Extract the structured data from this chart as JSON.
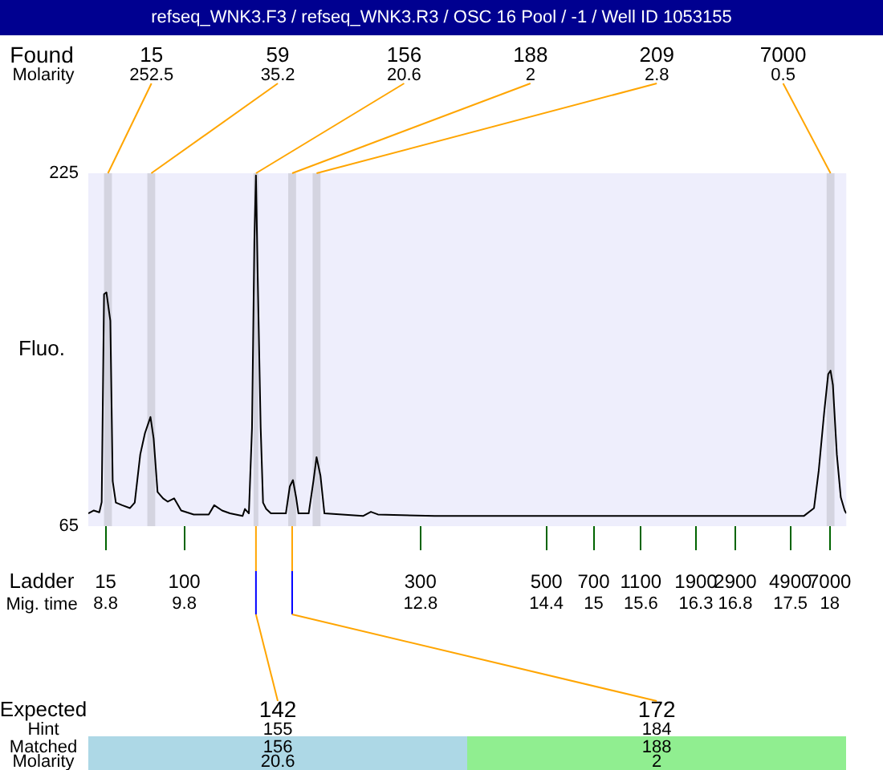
{
  "chart_data": {
    "type": "line",
    "title": "refseq_WNK3.F3 / refseq_WNK3.R3 / OSC 16 Pool / -1 / Well ID 1053155",
    "ylabel": "Fluo.",
    "xlabel": "Mig. time",
    "xlim": [
      8.58,
      18.21
    ],
    "ylim": [
      65,
      225
    ],
    "yticks": [
      65,
      225
    ],
    "xticks": [
      8.8,
      9.8,
      12.8,
      14.4,
      15,
      15.6,
      16.3,
      16.8,
      17.5,
      18
    ],
    "grid": false,
    "legend": false,
    "marker": "none",
    "line_style": "solid",
    "series": [
      {
        "color": "#000000",
        "x": [
          8.58,
          8.65,
          8.72,
          8.75,
          8.78,
          8.81,
          8.86,
          8.89,
          8.93,
          9.01,
          9.11,
          9.17,
          9.24,
          9.3,
          9.37,
          9.41,
          9.46,
          9.53,
          9.59,
          9.67,
          9.76,
          9.92,
          10.11,
          10.18,
          10.28,
          10.38,
          10.54,
          10.57,
          10.62,
          10.66,
          10.69,
          10.71,
          10.73,
          10.77,
          10.8,
          10.84,
          10.9,
          11.09,
          11.14,
          11.18,
          11.22,
          11.25,
          11.38,
          11.44,
          11.48,
          11.53,
          11.58,
          12.07,
          12.17,
          12.26,
          12.98,
          15.32,
          17.67,
          17.8,
          17.86,
          17.93,
          17.98,
          18.01,
          18.04,
          18.09,
          18.14,
          18.19,
          18.21
        ],
        "values": [
          70.8,
          72.1,
          71.3,
          75.9,
          170.2,
          171,
          158.1,
          85.4,
          75.7,
          74.5,
          73.2,
          75.7,
          97.5,
          107.2,
          114.5,
          104.8,
          80.5,
          77.6,
          76.1,
          77.6,
          72.1,
          70.3,
          70.3,
          74.5,
          72.1,
          70.8,
          69.6,
          72.8,
          70.8,
          109.6,
          194.5,
          224,
          182.3,
          109.6,
          75.7,
          72.8,
          70.8,
          70.8,
          83,
          85.9,
          78.1,
          70.8,
          70.8,
          85.4,
          96.3,
          87.8,
          70.8,
          69.6,
          71.5,
          70.3,
          69.6,
          69.6,
          69.6,
          73.2,
          90.2,
          116.9,
          133.9,
          135.5,
          129,
          97.5,
          78.1,
          72.1,
          70.8
        ]
      }
    ],
    "bands": [
      {
        "axis": "x",
        "from": 8.78,
        "to": 8.88,
        "color": "#d4d4e0"
      },
      {
        "axis": "x",
        "from": 9.33,
        "to": 9.43,
        "color": "#d4d4e0"
      },
      {
        "axis": "x",
        "from": 10.68,
        "to": 10.74,
        "color": "#d4d4e0"
      },
      {
        "axis": "x",
        "from": 11.12,
        "to": 11.22,
        "color": "#d4d4e0"
      },
      {
        "axis": "x",
        "from": 11.43,
        "to": 11.53,
        "color": "#d4d4e0"
      },
      {
        "axis": "x",
        "from": 17.96,
        "to": 18.06,
        "color": "#d4d4e0"
      }
    ],
    "annotations": [
      "Found",
      "Molarity",
      "Ladder",
      "Expected",
      "Hint",
      "Matched",
      "Molarity",
      "15",
      "100",
      "300",
      "500",
      "700",
      "1100",
      "1900",
      "2900",
      "4900",
      "7000",
      "142",
      "155",
      "156",
      "20.6",
      "172",
      "184",
      "188",
      "2",
      {
        "text": "15",
        "x": 8.83,
        "y": 225
      },
      {
        "text": "252.5",
        "x": 8.83,
        "y": 225
      },
      {
        "text": "59",
        "x": 9.38,
        "y": 225
      },
      {
        "text": "35.2",
        "x": 9.38,
        "y": 225
      },
      {
        "text": "156",
        "x": 10.71,
        "y": 225
      },
      {
        "text": "20.6",
        "x": 10.71,
        "y": 225
      },
      {
        "text": "188",
        "x": 11.17,
        "y": 225
      },
      {
        "text": "2",
        "x": 11.17,
        "y": 225
      },
      {
        "text": "209",
        "x": 11.48,
        "y": 225
      },
      {
        "text": "2.8",
        "x": 11.48,
        "y": 225
      },
      {
        "text": "7000",
        "x": 18.01,
        "y": 225
      },
      {
        "text": "0.5",
        "x": 18.01,
        "y": 225
      }
    ]
  }
}
